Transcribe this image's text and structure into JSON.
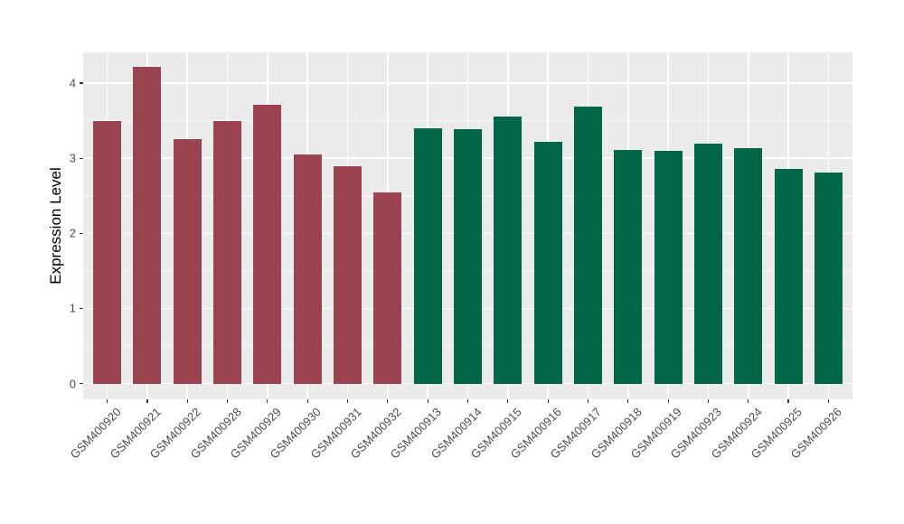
{
  "chart_data": {
    "type": "bar",
    "title": "",
    "xlabel": "",
    "ylabel": "Expression Level",
    "categories": [
      "GSM400920",
      "GSM400921",
      "GSM400922",
      "GSM400928",
      "GSM400929",
      "GSM400930",
      "GSM400931",
      "GSM400932",
      "GSM400913",
      "GSM400914",
      "GSM400915",
      "GSM400916",
      "GSM400917",
      "GSM400918",
      "GSM400919",
      "GSM400923",
      "GSM400924",
      "GSM400925",
      "GSM400926"
    ],
    "values": [
      3.49,
      4.22,
      3.26,
      3.5,
      3.71,
      3.05,
      2.89,
      2.54,
      3.4,
      3.39,
      3.55,
      3.22,
      3.69,
      3.11,
      3.1,
      3.2,
      3.14,
      2.86,
      2.81
    ],
    "groups": [
      "A",
      "A",
      "A",
      "A",
      "A",
      "A",
      "A",
      "A",
      "B",
      "B",
      "B",
      "B",
      "B",
      "B",
      "B",
      "B",
      "B",
      "B",
      "B"
    ],
    "group_colors": {
      "A": "#9B4351",
      "B": "#016748"
    },
    "yticks": [
      0,
      1,
      2,
      3,
      4
    ],
    "ylim_data": [
      0,
      4.22
    ],
    "ylim_panel": [
      -0.21,
      4.41
    ],
    "grid": true,
    "legend": "none",
    "panel_bg": "#EBEBEB",
    "grid_color": "#FFFFFF",
    "axis_text_color": "#4D4D4D",
    "tick_color": "#333333",
    "x_label_rotation_deg": 45,
    "bar_width_fraction": 0.7
  }
}
